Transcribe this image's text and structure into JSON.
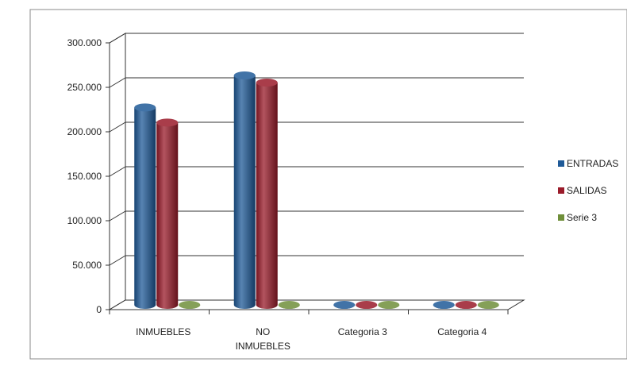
{
  "chart_data": {
    "type": "bar",
    "categories": [
      "INMUEBLES",
      "NO INMUEBLES",
      "Categoria 3",
      "Categoria 4"
    ],
    "category_lines": [
      [
        "INMUEBLES"
      ],
      [
        "NO",
        "INMUEBLES"
      ],
      [
        "Categoria 3"
      ],
      [
        "Categoria 4"
      ]
    ],
    "series": [
      {
        "name": "ENTRADAS",
        "values": [
          222000,
          258000,
          0,
          0
        ],
        "color": "#1f5a98"
      },
      {
        "name": "SALIDAS",
        "values": [
          205000,
          250000,
          0,
          0
        ],
        "color": "#9a1b2a"
      },
      {
        "name": "Serie 3",
        "values": [
          0,
          0,
          0,
          0
        ],
        "color": "#6f8f3a"
      }
    ],
    "ylim": [
      0,
      300000
    ],
    "yticks": [
      0,
      50000,
      100000,
      150000,
      200000,
      250000,
      300000
    ],
    "ytick_labels": [
      "0",
      "50.000",
      "100.000",
      "150.000",
      "200.000",
      "250.000",
      "300.000"
    ],
    "grid": true,
    "legend": "right",
    "style": "3d-cylinder"
  }
}
